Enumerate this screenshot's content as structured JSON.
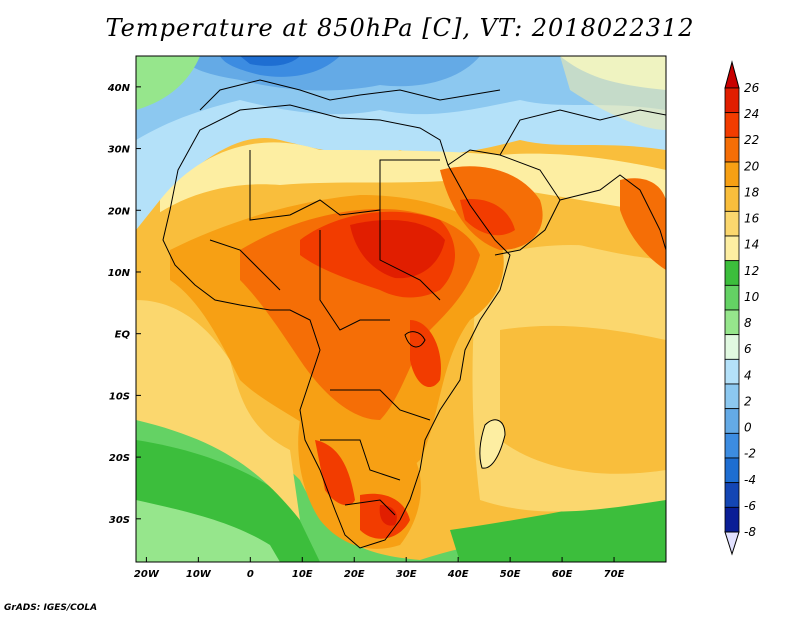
{
  "title": "Temperature at 850hPa [C], VT: 2018022312",
  "credit": "GrADS: IGES/COLA",
  "map": {
    "lon_range": [
      -22,
      80
    ],
    "lat_range": [
      -37,
      45
    ],
    "lon_ticks": [
      {
        "value": -20,
        "label": "20W"
      },
      {
        "value": -10,
        "label": "10W"
      },
      {
        "value": 0,
        "label": "0"
      },
      {
        "value": 10,
        "label": "10E"
      },
      {
        "value": 20,
        "label": "20E"
      },
      {
        "value": 30,
        "label": "30E"
      },
      {
        "value": 40,
        "label": "40E"
      },
      {
        "value": 50,
        "label": "50E"
      },
      {
        "value": 60,
        "label": "60E"
      },
      {
        "value": 70,
        "label": "70E"
      }
    ],
    "lat_ticks": [
      {
        "value": 40,
        "label": "40N"
      },
      {
        "value": 30,
        "label": "30N"
      },
      {
        "value": 20,
        "label": "20N"
      },
      {
        "value": 10,
        "label": "10N"
      },
      {
        "value": 0,
        "label": "EQ"
      },
      {
        "value": -10,
        "label": "10S"
      },
      {
        "value": -20,
        "label": "20S"
      },
      {
        "value": -30,
        "label": "30S"
      }
    ]
  },
  "colorbar": {
    "levels": [
      "26",
      "24",
      "22",
      "20",
      "18",
      "16",
      "14",
      "12",
      "10",
      "8",
      "6",
      "4",
      "2",
      "0",
      "-2",
      "-4",
      "-6",
      "-8"
    ],
    "colors": [
      "#e11e00",
      "#f23c00",
      "#f56e06",
      "#f7a014",
      "#f9be3c",
      "#fbd76e",
      "#fdeea2",
      "#3cbe3c",
      "#64d264",
      "#96e68c",
      "#e1f9e1",
      "#b4e1f9",
      "#8cc8f0",
      "#64aae6",
      "#3c8ce1",
      "#1e6ed2",
      "#1446b4",
      "#0a1e96"
    ],
    "top_color": "#c80000",
    "bottom_color": "#e1e1ff"
  }
}
